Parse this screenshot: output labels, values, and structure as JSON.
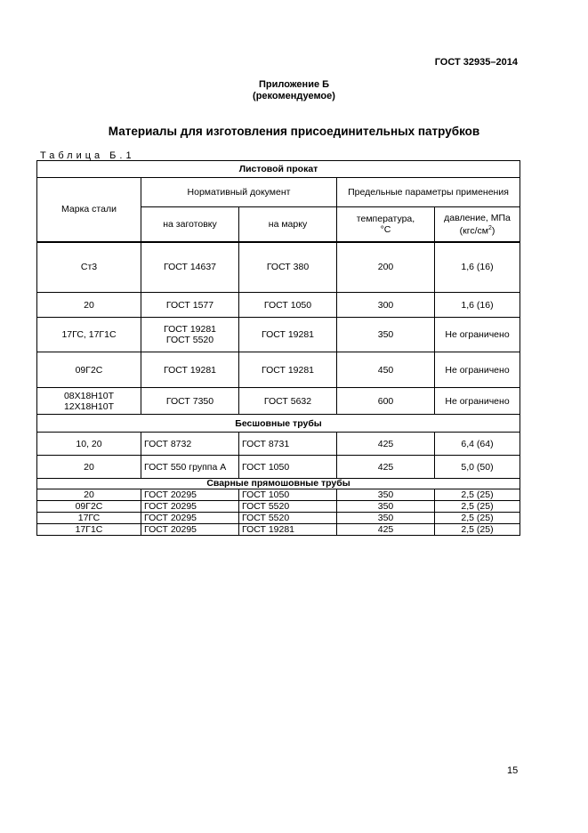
{
  "header": {
    "standard": "ГОСТ 32935–2014"
  },
  "appendix": {
    "line1": "Приложение Б",
    "line2": "(рекомендуемое)"
  },
  "title": "Материалы для изготовления присоединительных патрубков",
  "table_label": "Таблица Б.1",
  "table": {
    "headers": {
      "grade": "Марка стали",
      "normdoc": "Нормативный документ",
      "limits": "Предельные параметры применения",
      "blank": "на заготовку",
      "grade_doc": "на марку",
      "temp": "температура,",
      "temp_unit": "°С",
      "pressure": "давление, МПа",
      "pressure_unit_a": "(кгс/см",
      "pressure_unit_sup": "2",
      "pressure_unit_b": ")"
    },
    "sections": [
      {
        "title": "Листовой прокат",
        "rows": [
          [
            "Ст3",
            "ГОСТ 14637",
            "ГОСТ 380",
            "200",
            "1,6 (16)"
          ],
          [
            "20",
            "ГОСТ 1577",
            "ГОСТ 1050",
            "300",
            "1,6 (16)"
          ],
          [
            "17ГС, 17Г1С",
            "ГОСТ 19281 ГОСТ 5520",
            "ГОСТ 19281",
            "350",
            "Не ограничено"
          ],
          [
            "09Г2С",
            "ГОСТ 19281",
            "ГОСТ 19281",
            "450",
            "Не ограничено"
          ],
          [
            "08Х18Н10Т 12Х18Н10Т",
            "ГОСТ 7350",
            "ГОСТ 5632",
            "600",
            "Не ограничено"
          ]
        ]
      },
      {
        "title": "Бесшовные трубы",
        "rows": [
          [
            "10, 20",
            "ГОСТ 8732",
            "ГОСТ 8731",
            "425",
            "6,4 (64)"
          ],
          [
            "20",
            "ГОСТ 550 группа А",
            "ГОСТ 1050",
            "425",
            "5,0 (50)"
          ]
        ]
      },
      {
        "title": "Сварные прямошовные трубы",
        "rows": [
          [
            "20",
            "ГОСТ 20295",
            "ГОСТ 1050",
            "350",
            "2,5 (25)"
          ],
          [
            "09Г2С",
            "ГОСТ 20295",
            "ГОСТ 5520",
            "350",
            "2,5 (25)"
          ],
          [
            "17ГС",
            "ГОСТ 20295",
            "ГОСТ 5520",
            "350",
            "2,5 (25)"
          ],
          [
            "17Г1С",
            "ГОСТ 20295",
            "ГОСТ 19281",
            "425",
            "2,5 (25)"
          ]
        ]
      }
    ]
  },
  "page_number": "15"
}
